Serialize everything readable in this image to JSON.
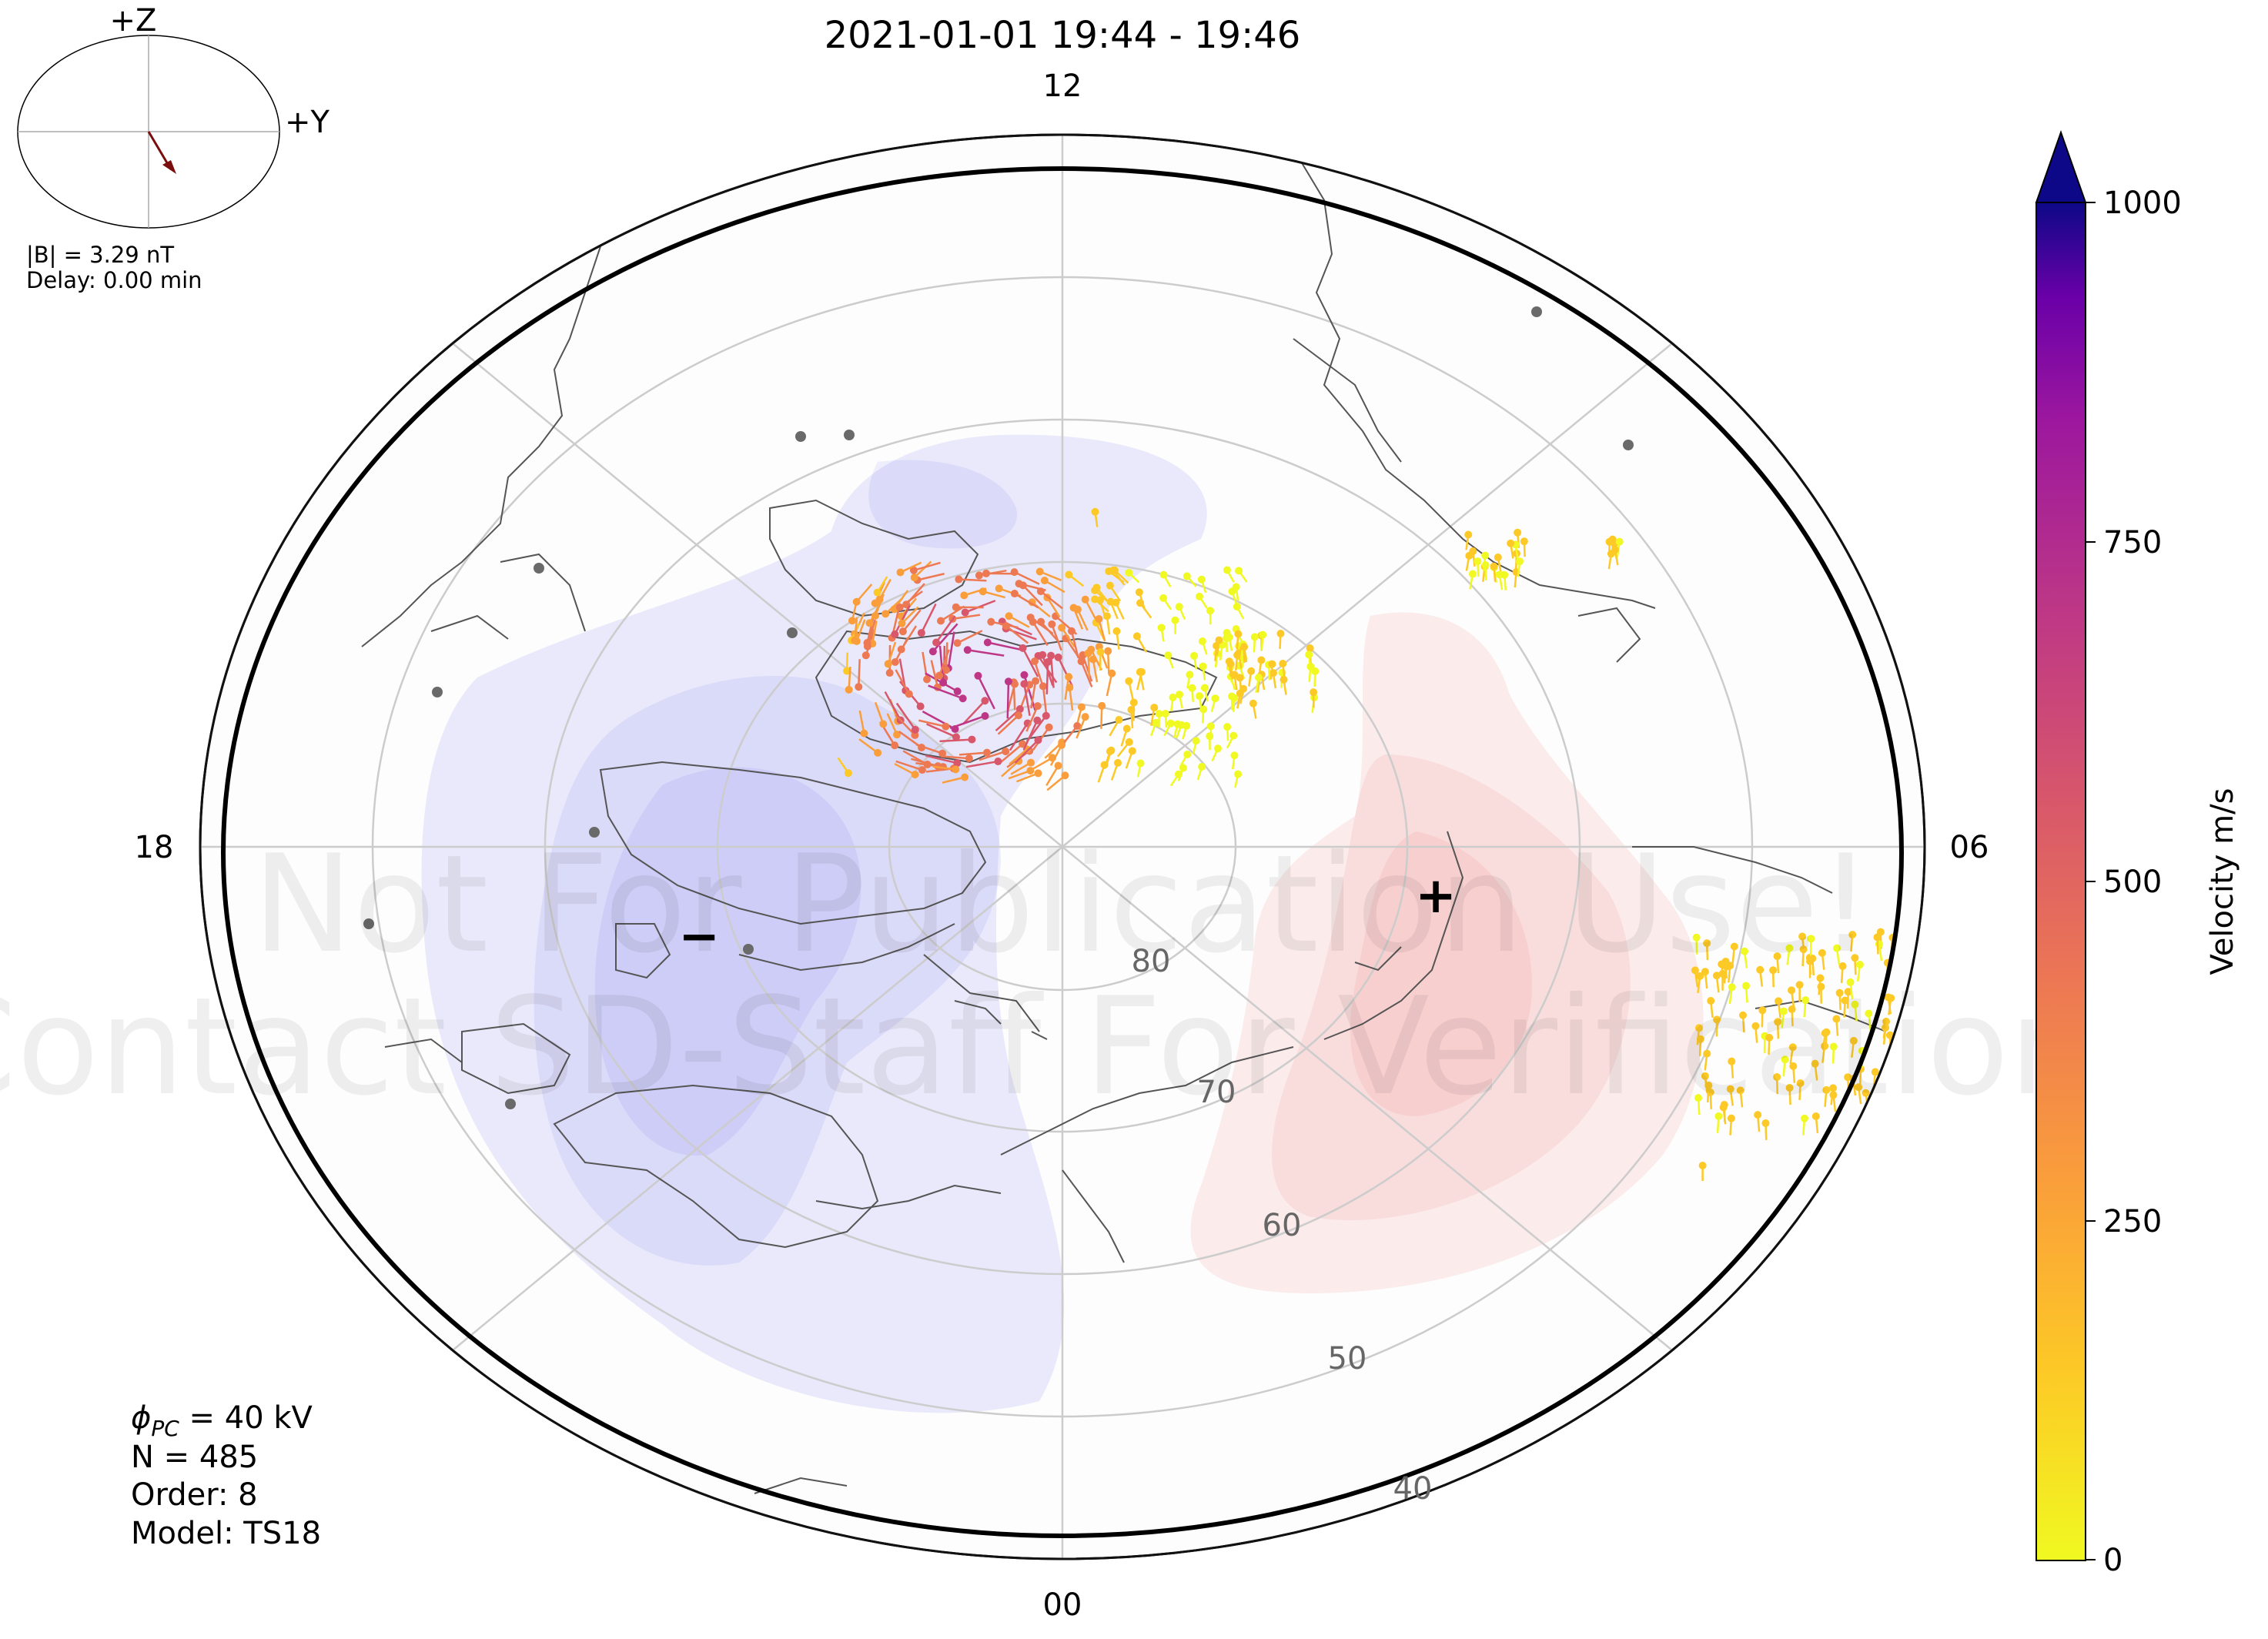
{
  "title": "2021-01-01 19:44 - 19:46",
  "mlt_labels": {
    "top": "12",
    "bottom": "00",
    "left": "18",
    "right": "06"
  },
  "lat_labels": [
    "80",
    "70",
    "60",
    "50",
    "40"
  ],
  "watermark": {
    "line1": "Not For Publication Use!",
    "line2": "Contact SD-Staff For Verification"
  },
  "potential_markers": {
    "min": "−",
    "max": "+"
  },
  "imf_dial": {
    "z_label": "+Z",
    "y_label": "+Y",
    "b_total": "|B| = 3.29 nT",
    "delay": "Delay: 0.00 min",
    "arrow_color": "#7a0d0d"
  },
  "stats": {
    "phi_symbol": "ϕ",
    "phi_sub": "PC",
    "phi_value": " = 40 kV",
    "n": "N = 485",
    "order": "Order: 8",
    "model": "Model: TS18"
  },
  "colorbar": {
    "label": "Velocity m/s",
    "ticks": [
      "1000",
      "750",
      "500",
      "250",
      "0"
    ],
    "colormap": "plasma_r",
    "min": 0,
    "max": 1000,
    "extend": "max"
  },
  "colors": {
    "negative_cell": "#7c7cf2",
    "positive_cell": "#f28c8c",
    "grid": "#cccccc",
    "coast": "#555555",
    "station": "#6a6a6a"
  }
}
